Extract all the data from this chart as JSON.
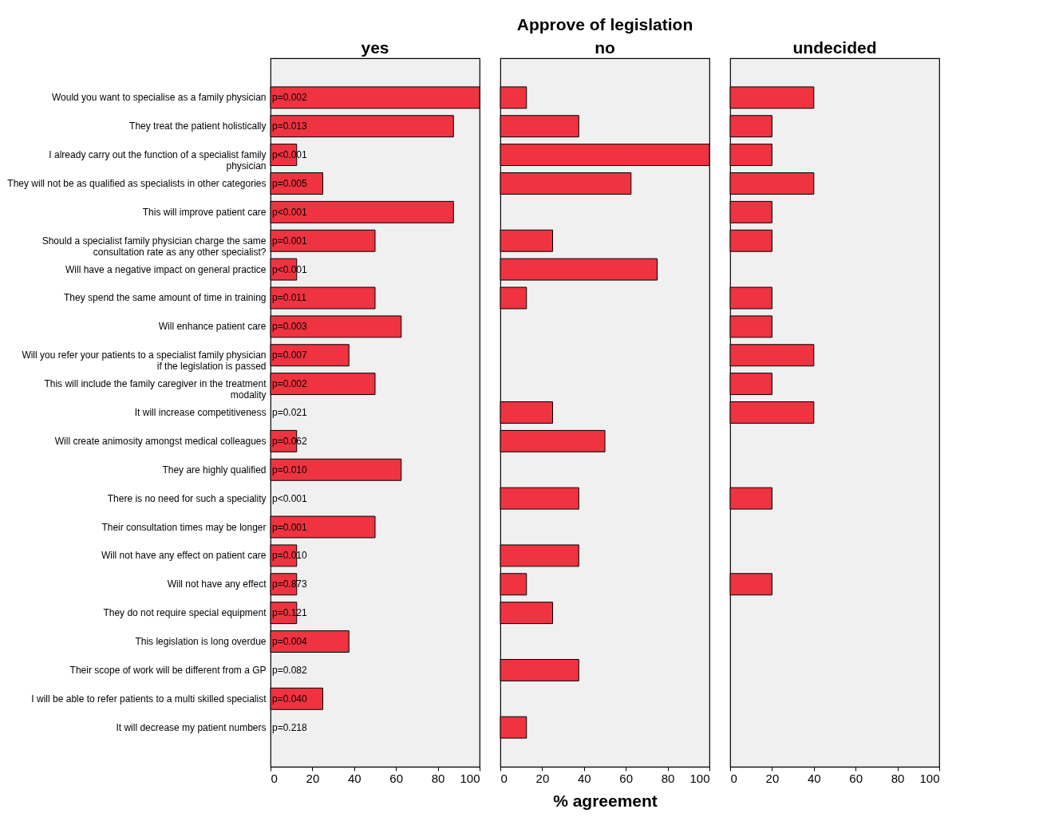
{
  "chart_data": [
    {
      "type": "bar",
      "orientation": "horizontal",
      "title": "yes",
      "categories": [
        "Would you want to specialise as a family physician",
        "They treat the patient holistically",
        "I already carry out the function of a specialist family\nphysician",
        "They will not be as qualified as specialists in other categories",
        "This will improve patient care",
        "Should a specialist family physician charge the same\nconsultation rate as any other specialist?",
        "Will have a negative impact on general practice",
        "They spend the same amount of time in training",
        "Will enhance patient care",
        "Will you refer your patients to a specialist family physician\nif the legislation is passed",
        "This will include the family caregiver in the treatment\nmodality",
        "It will increase competitiveness",
        "Will create animosity amongst medical colleagues",
        "They are highly qualified",
        "There is no need for such a speciality",
        "Their consultation times may be longer",
        "Will not have any effect on patient care",
        "Will not have any effect",
        "They do not require special equipment",
        "This legislation is long overdue",
        "Their scope of work will be different from a GP",
        "I will be able to refer patients to a multi skilled specialist",
        "It will decrease my patient numbers"
      ],
      "values": [
        100,
        87.5,
        12.5,
        25,
        87.5,
        50,
        12.5,
        50,
        62.5,
        37.5,
        50,
        null,
        12.5,
        62.5,
        null,
        50,
        12.5,
        12.5,
        12.5,
        37.5,
        null,
        25,
        null
      ],
      "color": "#ef3340",
      "xlim": [
        0,
        100
      ],
      "xticks": [
        0,
        20,
        40,
        60,
        80,
        100
      ],
      "grid": false,
      "annotations": [
        "p=0.002",
        "p=0.013",
        "p<0.001",
        "p=0.005",
        "p<0.001",
        "p=0.001",
        "p<0.001",
        "p=0.011",
        "p=0.003",
        "p=0.007",
        "p=0.002",
        "p=0.021",
        "p=0.062",
        "p=0.010",
        "p<0.001",
        "p=0.001",
        "p=0.010",
        "p=0.873",
        "p=0.121",
        "p=0.004",
        "p=0.082",
        "p=0.040",
        "p=0.218"
      ]
    },
    {
      "type": "bar",
      "orientation": "horizontal",
      "title": "Approve of legislation",
      "subtitle": "no",
      "xlabel": "% agreement",
      "tick_labels": "x",
      "values": [
        12.5,
        37.5,
        100,
        62.5,
        null,
        25,
        75,
        12.5,
        null,
        null,
        null,
        25,
        50,
        null,
        37.5,
        null,
        37.5,
        12.5,
        25,
        null,
        37.5,
        null,
        12.5
      ],
      "color": "#ef3340",
      "xlim": [
        0,
        100
      ],
      "xticks": [
        0,
        20,
        40,
        60,
        80,
        100
      ],
      "grid": false
    },
    {
      "type": "bar",
      "orientation": "horizontal",
      "title": "undecided",
      "tick_labels": "x",
      "values": [
        40,
        20,
        20,
        40,
        20,
        20,
        null,
        20,
        20,
        40,
        20,
        40,
        null,
        null,
        20,
        null,
        null,
        20,
        null,
        null,
        null,
        null,
        null
      ],
      "color": "#ef3340",
      "xlim": [
        0,
        100
      ],
      "xticks": [
        0,
        20,
        40,
        60,
        80,
        100
      ],
      "grid": false
    }
  ]
}
